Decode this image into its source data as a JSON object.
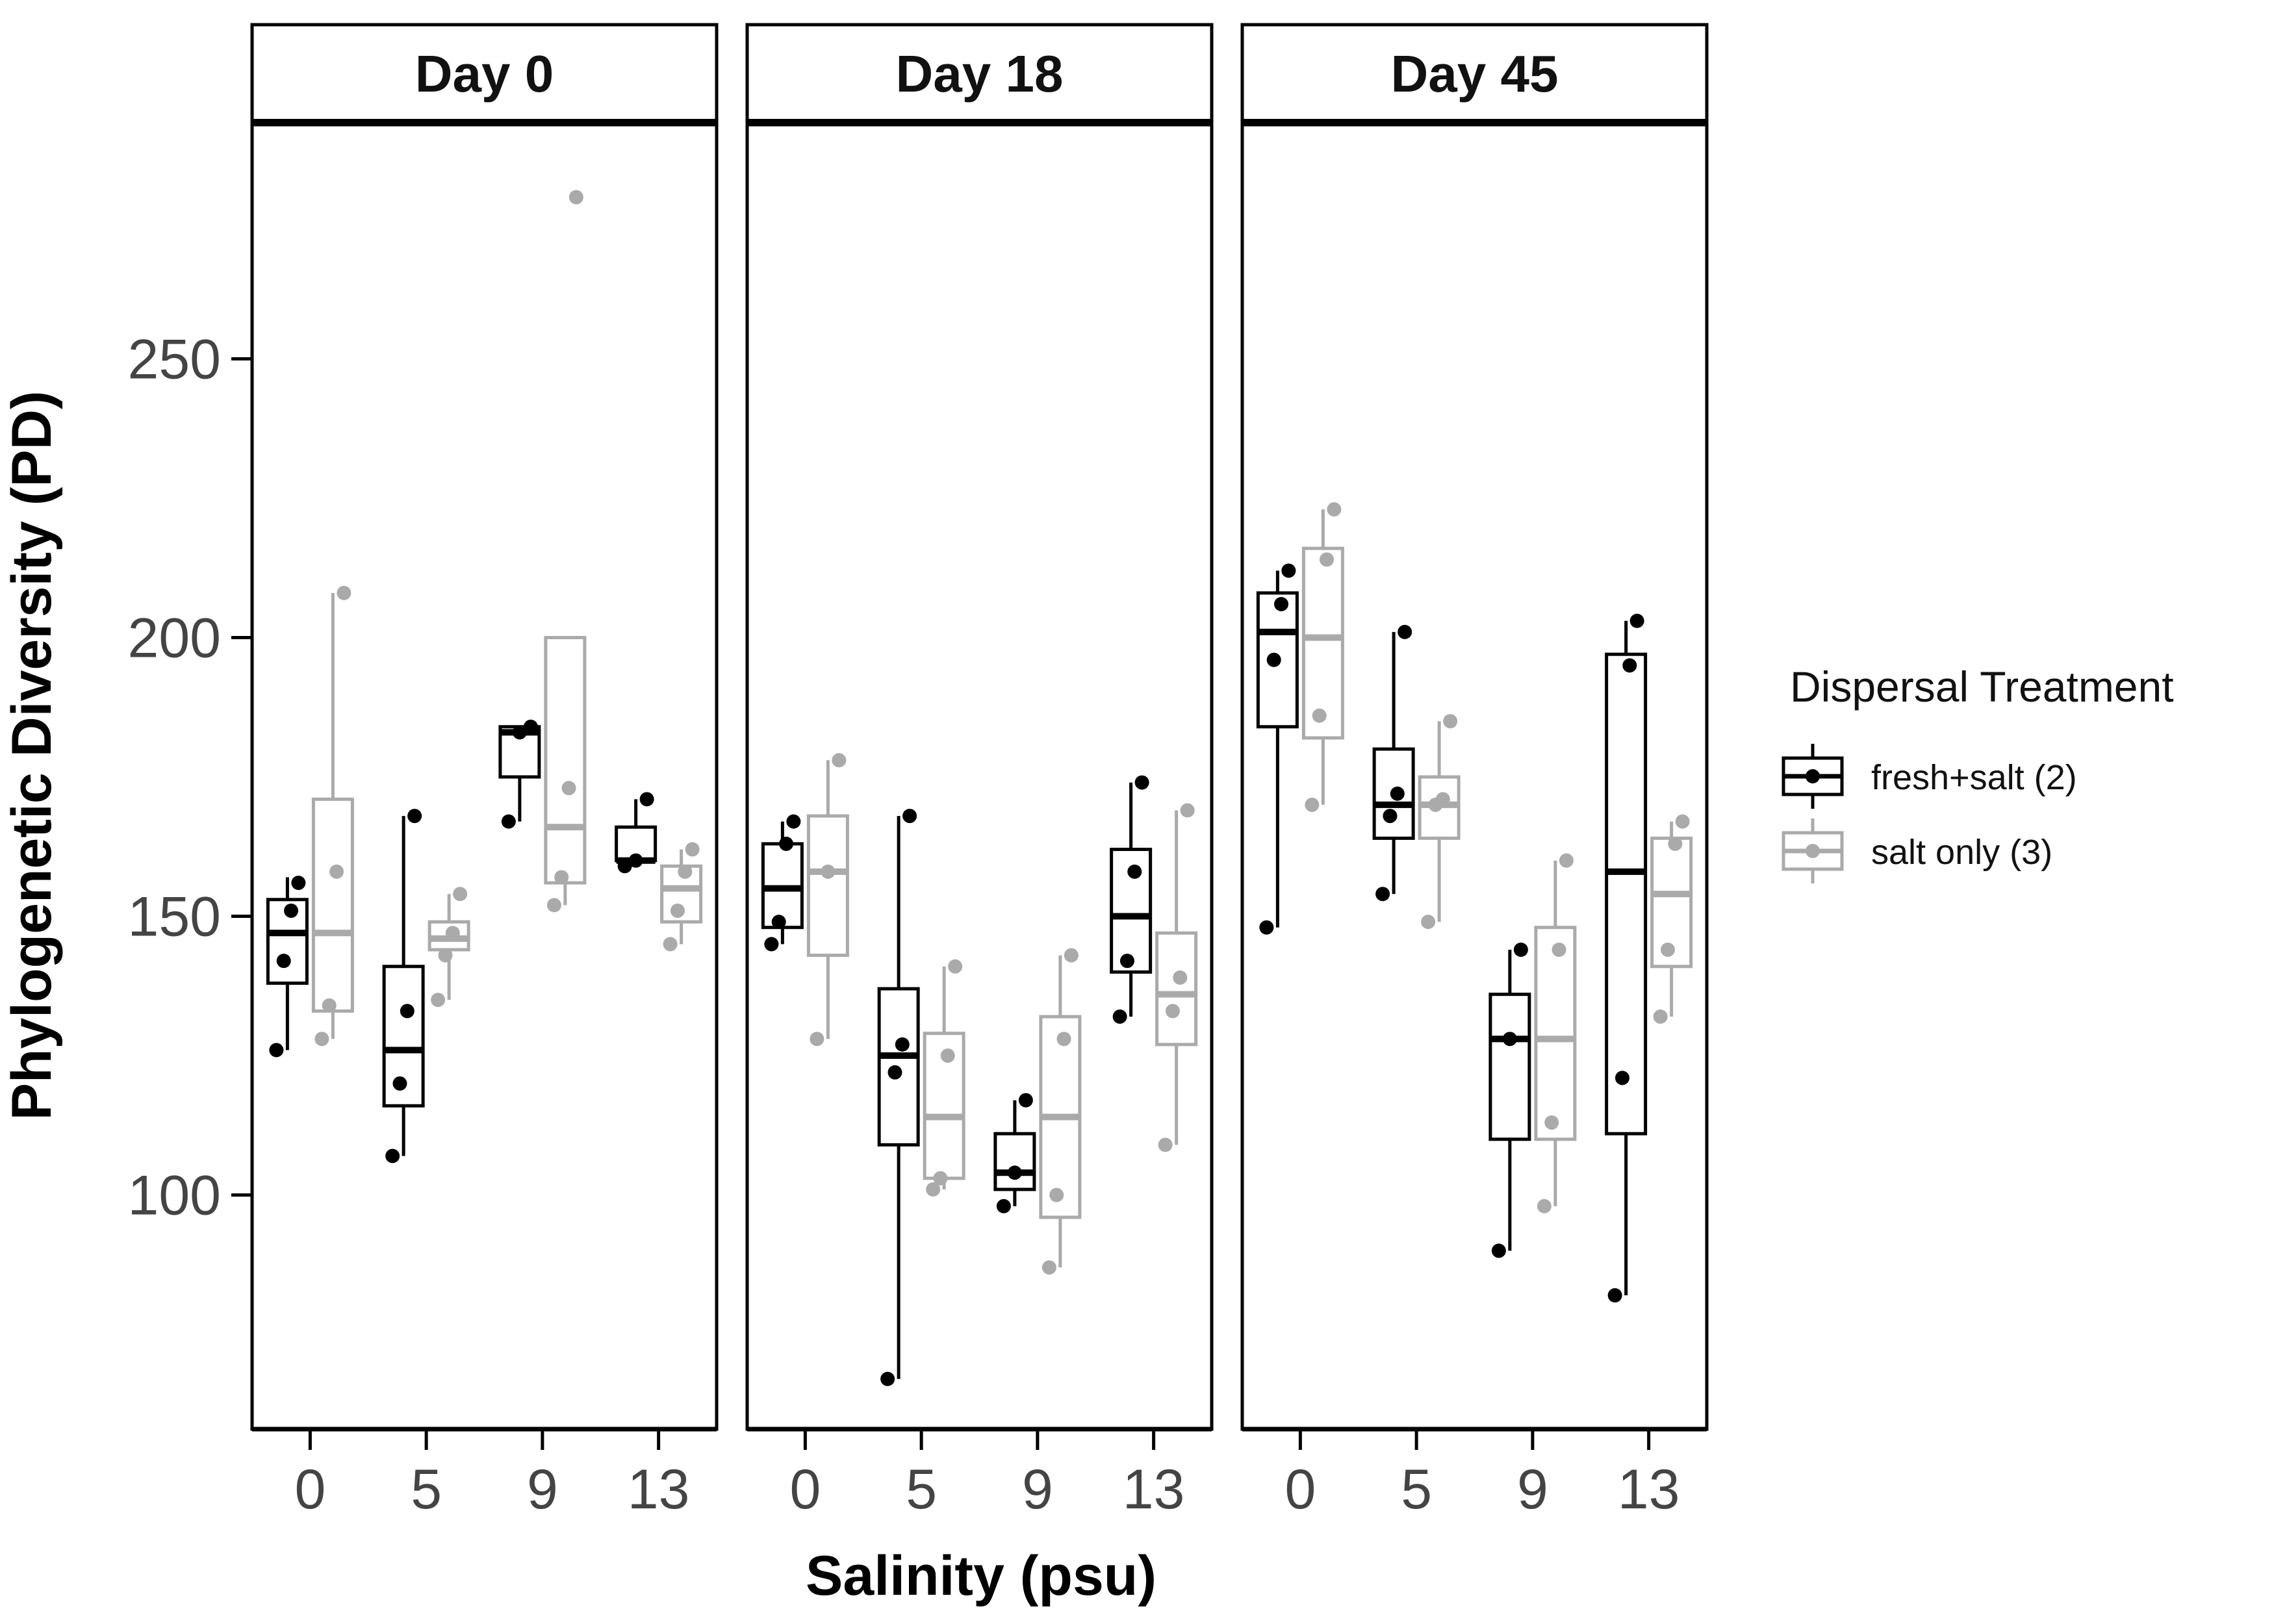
{
  "chart_data": {
    "type": "boxplot",
    "xlabel": "Salinity (psu)",
    "ylabel": "Phylogenetic Diversity (PD)",
    "categories": [
      "0",
      "5",
      "9",
      "13"
    ],
    "yticks": [
      100,
      150,
      200,
      250
    ],
    "ylim": [
      58,
      292
    ],
    "legend": {
      "title": "Dispersal Treatment",
      "position": "right",
      "entries": [
        {
          "label": "fresh+salt (2)",
          "color": "#000000"
        },
        {
          "label": "salt only (3)",
          "color": "#aaaaaa"
        }
      ]
    },
    "panels": [
      {
        "title": "Day 0",
        "series": [
          {
            "name": "fresh+salt (2)",
            "boxes": [
              {
                "category": "0",
                "min": 126,
                "q1": 138,
                "median": 147,
                "q3": 153,
                "max": 157,
                "points": [
                  126,
                  142,
                  151,
                  156
                ]
              },
              {
                "category": "5",
                "min": 107,
                "q1": 116,
                "median": 126,
                "q3": 141,
                "max": 168,
                "points": [
                  107,
                  120,
                  133,
                  168
                ]
              },
              {
                "category": "9",
                "min": 167,
                "q1": 175,
                "median": 183,
                "q3": 184,
                "max": 184,
                "points": [
                  167,
                  183,
                  184
                ]
              },
              {
                "category": "13",
                "min": 159,
                "q1": 160,
                "median": 160,
                "q3": 166,
                "max": 171,
                "points": [
                  159,
                  160,
                  171
                ]
              }
            ]
          },
          {
            "name": "salt only (3)",
            "boxes": [
              {
                "category": "0",
                "min": 128,
                "q1": 133,
                "median": 147,
                "q3": 171,
                "max": 208,
                "points": [
                  128,
                  134,
                  158,
                  208
                ]
              },
              {
                "category": "5",
                "min": 135,
                "q1": 144,
                "median": 146,
                "q3": 149,
                "max": 154,
                "points": [
                  135,
                  143,
                  147,
                  154
                ]
              },
              {
                "category": "9",
                "min": 152,
                "q1": 156,
                "median": 166,
                "q3": 200,
                "max": 200,
                "points": [
                  152,
                  157,
                  173,
                  279
                ]
              },
              {
                "category": "13",
                "min": 145,
                "q1": 149,
                "median": 155,
                "q3": 159,
                "max": 162,
                "points": [
                  145,
                  151,
                  158,
                  162
                ]
              }
            ]
          }
        ]
      },
      {
        "title": "Day 18",
        "series": [
          {
            "name": "fresh+salt (2)",
            "boxes": [
              {
                "category": "0",
                "min": 145,
                "q1": 148,
                "median": 155,
                "q3": 163,
                "max": 167,
                "points": [
                  145,
                  149,
                  163,
                  167
                ]
              },
              {
                "category": "5",
                "min": 67,
                "q1": 109,
                "median": 125,
                "q3": 137,
                "max": 168,
                "points": [
                  67,
                  122,
                  127,
                  168
                ]
              },
              {
                "category": "9",
                "min": 98,
                "q1": 101,
                "median": 104,
                "q3": 111,
                "max": 117,
                "points": [
                  98,
                  104,
                  117
                ]
              },
              {
                "category": "13",
                "min": 132,
                "q1": 140,
                "median": 150,
                "q3": 162,
                "max": 174,
                "points": [
                  132,
                  142,
                  158,
                  174
                ]
              }
            ]
          },
          {
            "name": "salt only (3)",
            "boxes": [
              {
                "category": "0",
                "min": 128,
                "q1": 143,
                "median": 158,
                "q3": 168,
                "max": 178,
                "points": [
                  128,
                  158,
                  178
                ]
              },
              {
                "category": "5",
                "min": 101,
                "q1": 103,
                "median": 114,
                "q3": 129,
                "max": 141,
                "points": [
                  101,
                  103,
                  125,
                  141
                ]
              },
              {
                "category": "9",
                "min": 87,
                "q1": 96,
                "median": 114,
                "q3": 132,
                "max": 143,
                "points": [
                  87,
                  100,
                  128,
                  143
                ]
              },
              {
                "category": "13",
                "min": 109,
                "q1": 127,
                "median": 136,
                "q3": 147,
                "max": 169,
                "points": [
                  109,
                  133,
                  139,
                  169
                ]
              }
            ]
          }
        ]
      },
      {
        "title": "Day 45",
        "series": [
          {
            "name": "fresh+salt (2)",
            "boxes": [
              {
                "category": "0",
                "min": 148,
                "q1": 184,
                "median": 201,
                "q3": 208,
                "max": 212,
                "points": [
                  148,
                  196,
                  206,
                  212
                ]
              },
              {
                "category": "5",
                "min": 154,
                "q1": 164,
                "median": 170,
                "q3": 180,
                "max": 201,
                "points": [
                  154,
                  168,
                  172,
                  201
                ]
              },
              {
                "category": "9",
                "min": 90,
                "q1": 110,
                "median": 128,
                "q3": 136,
                "max": 144,
                "points": [
                  90,
                  128,
                  144
                ]
              },
              {
                "category": "13",
                "min": 82,
                "q1": 111,
                "median": 158,
                "q3": 197,
                "max": 203,
                "points": [
                  82,
                  121,
                  195,
                  203
                ]
              }
            ]
          },
          {
            "name": "salt only (3)",
            "boxes": [
              {
                "category": "0",
                "min": 170,
                "q1": 182,
                "median": 200,
                "q3": 216,
                "max": 223,
                "points": [
                  170,
                  186,
                  214,
                  223
                ]
              },
              {
                "category": "5",
                "min": 149,
                "q1": 164,
                "median": 170,
                "q3": 175,
                "max": 185,
                "points": [
                  149,
                  170,
                  171,
                  185
                ]
              },
              {
                "category": "9",
                "min": 98,
                "q1": 110,
                "median": 128,
                "q3": 148,
                "max": 160,
                "points": [
                  98,
                  113,
                  144,
                  160
                ]
              },
              {
                "category": "13",
                "min": 132,
                "q1": 141,
                "median": 154,
                "q3": 164,
                "max": 167,
                "points": [
                  132,
                  144,
                  163,
                  167
                ]
              }
            ]
          }
        ]
      }
    ]
  }
}
